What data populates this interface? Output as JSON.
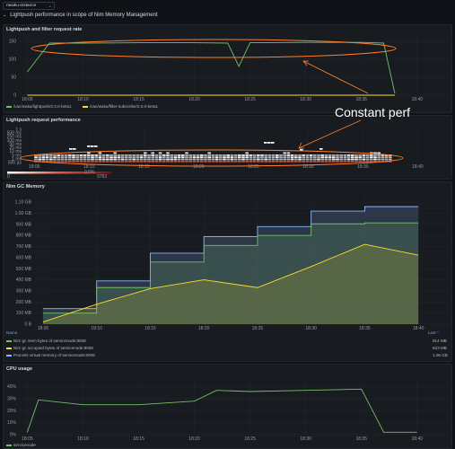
{
  "toolbar": {
    "instance_select": "nwaku-instance",
    "chevron": "⌄"
  },
  "row": {
    "title": "Lightpush performance in scope of Nim Memory Management",
    "arrow": "⌄"
  },
  "annotation": {
    "text": "Constant perf",
    "color": "#ff7f2a"
  },
  "time_ticks": [
    "18:05",
    "18:10",
    "18:15",
    "18:20",
    "18:25",
    "18:30",
    "18:35",
    "18:40"
  ],
  "panels": {
    "rate": {
      "title": "Lightpush and filter request rate",
      "y_ticks": [
        "0",
        "50",
        "100",
        "150"
      ],
      "legend": [
        {
          "label": "/vac/waku/lightpush/2.0.0-beta1",
          "color": "#73bf69"
        },
        {
          "label": "/vac/waku/filter-subscribe/2.0.0-beta1",
          "color": "#fade2a"
        }
      ]
    },
    "perf": {
      "title": "Lightpush request performance",
      "y_ticks": [
        "1 s",
        "500 ms",
        "250 ms",
        "100 ms",
        "50 ms",
        "25 ms",
        "10 ms",
        "5 ms",
        "1 ms",
        "500 µs"
      ],
      "scale_label": "0.5%",
      "scale_min": "0",
      "scale_max": "9783"
    },
    "mem": {
      "title": "Nim GC Memory",
      "y_ticks": [
        "0 B",
        "100 MB",
        "200 MB",
        "300 MB",
        "400 MB",
        "500 MB",
        "600 MB",
        "700 MB",
        "800 MB",
        "900 MB",
        "1.00 GB",
        "1.10 GB"
      ],
      "legend_header_name": "Name",
      "legend_header_last": "Last *",
      "legend": [
        {
          "label": "Nim gc mem bytes of servicenode:8008",
          "color": "#73bf69",
          "last": "914 MB"
        },
        {
          "label": "Nim gc occupied bytes of servicenode:8008",
          "color": "#fade2a",
          "last": "623 MB"
        },
        {
          "label": "Process virtual memory of servicenode:8008",
          "color": "#8ab8ff",
          "last": "1.06 GB"
        }
      ]
    },
    "cpu": {
      "title": "CPU usage",
      "y_ticks": [
        "0%",
        "10%",
        "20%",
        "30%",
        "40%"
      ],
      "legend": [
        {
          "label": "servicenode",
          "color": "#73bf69"
        }
      ]
    }
  },
  "chart_data": [
    {
      "type": "line",
      "title": "Lightpush and filter request rate",
      "x": [
        "18:05",
        "18:07",
        "18:10",
        "18:15",
        "18:20",
        "18:23",
        "18:24",
        "18:25",
        "18:30",
        "18:35",
        "18:37",
        "18:38"
      ],
      "ylim": [
        0,
        160
      ],
      "series": [
        {
          "name": "/vac/waku/lightpush/2.0.0-beta1",
          "values": [
            65,
            145,
            145,
            146,
            146,
            145,
            80,
            146,
            147,
            147,
            145,
            5
          ]
        },
        {
          "name": "/vac/waku/filter-subscribe/2.0.0-beta1",
          "values": [
            0,
            0,
            0,
            0,
            0,
            0,
            0,
            0,
            0,
            0,
            0,
            0
          ]
        }
      ]
    },
    {
      "type": "heatmap",
      "title": "Lightpush request performance",
      "note": "dense band of request latencies between roughly 1 ms and 10 ms across 18:05–18:38"
    },
    {
      "type": "area",
      "title": "Nim GC Memory",
      "x": [
        "18:05",
        "18:10",
        "18:15",
        "18:20",
        "18:25",
        "18:30",
        "18:35",
        "18:40"
      ],
      "ylim": [
        0,
        1150
      ],
      "series": [
        {
          "name": "Process virtual memory of servicenode:8008",
          "values": [
            140,
            390,
            640,
            790,
            880,
            1020,
            1060,
            1060
          ]
        },
        {
          "name": "Nim gc mem bytes of servicenode:8008",
          "values": [
            100,
            330,
            560,
            710,
            800,
            905,
            914,
            914
          ]
        },
        {
          "name": "Nim gc occupied bytes of servicenode:8008",
          "values": [
            20,
            180,
            320,
            400,
            330,
            520,
            720,
            623
          ]
        }
      ]
    },
    {
      "type": "line",
      "title": "CPU usage",
      "x": [
        "18:05",
        "18:06",
        "18:10",
        "18:15",
        "18:20",
        "18:22",
        "18:25",
        "18:30",
        "18:35",
        "18:37",
        "18:40"
      ],
      "ylim": [
        0,
        45
      ],
      "series": [
        {
          "name": "servicenode",
          "values": [
            2,
            29,
            25,
            25,
            28,
            37,
            36,
            37,
            38,
            2,
            2
          ]
        }
      ]
    }
  ]
}
